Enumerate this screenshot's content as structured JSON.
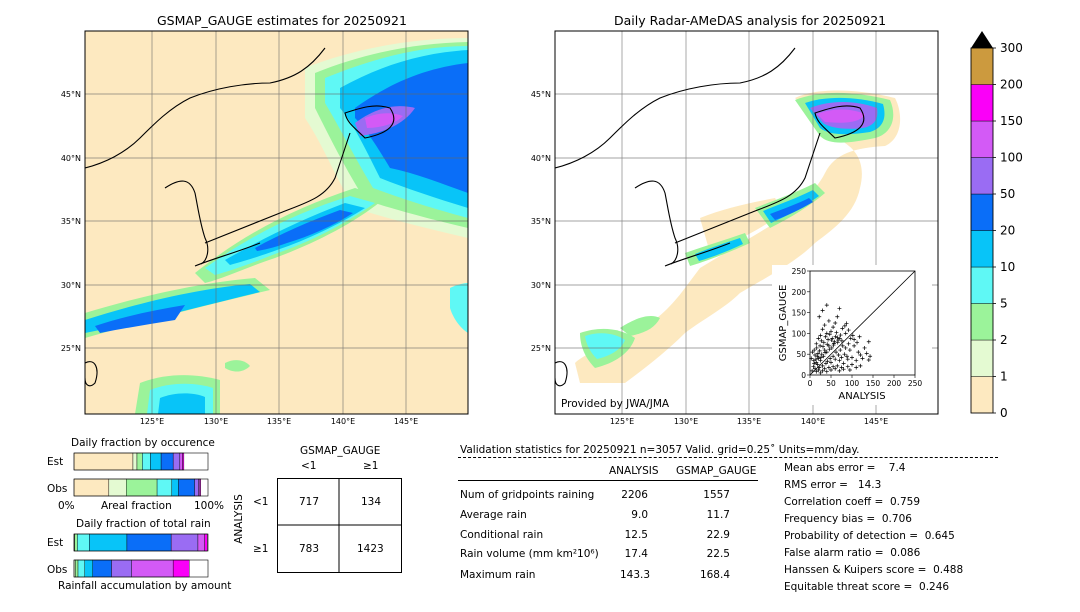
{
  "left_map": {
    "title": "GSMAP_GAUGE estimates for 20250921",
    "lon_labels": [
      "125°E",
      "130°E",
      "135°E",
      "140°E",
      "145°E"
    ],
    "lat_labels": [
      "45°N",
      "40°N",
      "35°N",
      "30°N",
      "25°N"
    ]
  },
  "right_map": {
    "title": "Daily Radar-AMeDAS analysis for 20250921",
    "lon_labels": [
      "125°E",
      "130°E",
      "135°E",
      "140°E",
      "145°E"
    ],
    "lat_labels": [
      "45°N",
      "40°N",
      "35°N",
      "30°N",
      "25°N"
    ],
    "credit": "Provided by JWA/JMA"
  },
  "colorbar": {
    "labels": [
      "0",
      "1",
      "2",
      "5",
      "10",
      "20",
      "50",
      "100",
      "150",
      "200",
      "300"
    ],
    "colors": [
      "#fde9c0",
      "#e4fad2",
      "#9bf39a",
      "#5ff8f5",
      "#08c4f8",
      "#0a6ef8",
      "#9a6cf3",
      "#d35af6",
      "#fa00f8",
      "#cc9a3e"
    ]
  },
  "occurrence": {
    "title": "Daily fraction by occurence",
    "row_labels": [
      "Est",
      "Obs"
    ],
    "axis_left": "0%",
    "axis_mid": "Areal fraction",
    "axis_right": "100%",
    "est_segments": [
      0.44,
      0.03,
      0.04,
      0.06,
      0.08,
      0.09,
      0.05,
      0.02,
      0.01,
      0.0
    ],
    "obs_segments": [
      0.26,
      0.13,
      0.23,
      0.11,
      0.05,
      0.12,
      0.03,
      0.01,
      0.005,
      0.0
    ]
  },
  "total_rain": {
    "title": "Daily fraction of total rain",
    "row_labels": [
      "Est",
      "Obs"
    ],
    "axis_label": "Rainfall accumulation by amount",
    "est_segments": [
      0.005,
      0.02,
      0.09,
      0.28,
      0.33,
      0.2,
      0.05,
      0.02
    ],
    "obs_segments": [
      0.01,
      0.02,
      0.05,
      0.06,
      0.14,
      0.15,
      0.31,
      0.12
    ]
  },
  "contingency": {
    "header": "GSMAP_GAUGE",
    "col_labels": [
      "<1",
      "≥1"
    ],
    "row_axis_label": "ANALYSIS",
    "row_labels": [
      "<1",
      "≥1"
    ],
    "cells": [
      [
        "717",
        "134"
      ],
      [
        "783",
        "1423"
      ]
    ]
  },
  "validation": {
    "header": "Validation statistics for 20250921  n=3057 Valid. grid=0.25˚ Units=mm/day.",
    "col_headers": [
      "ANALYSIS",
      "GSMAP_GAUGE"
    ],
    "rows": [
      {
        "label": "Num of gridpoints raining",
        "a": "2206",
        "g": "1557"
      },
      {
        "label": "Average rain",
        "a": "9.0",
        "g": "11.7"
      },
      {
        "label": "Conditional rain",
        "a": "12.5",
        "g": "22.9"
      },
      {
        "label": "Rain volume (mm km²10⁶)",
        "a": "17.4",
        "g": "22.5"
      },
      {
        "label": "Maximum rain",
        "a": "143.3",
        "g": "168.4"
      }
    ],
    "scores": [
      "Mean abs error =    7.4",
      "RMS error =   14.3",
      "Correlation coeff =  0.759",
      "Frequency bias =  0.706",
      "Probability of detection =  0.645",
      "False alarm ratio =  0.086",
      "Hanssen & Kuipers score =  0.488",
      "Equitable threat score =  0.246"
    ]
  },
  "chart_data": {
    "type": "scatter",
    "title": "",
    "xlabel": "ANALYSIS",
    "ylabel": "GSMAP_GAUGE",
    "xlim": [
      0,
      250
    ],
    "ylim": [
      0,
      250
    ],
    "ticks": [
      "0",
      "50",
      "100",
      "150",
      "200",
      "250"
    ],
    "diagonal": true,
    "points": [
      [
        5,
        10
      ],
      [
        8,
        20
      ],
      [
        12,
        15
      ],
      [
        15,
        30
      ],
      [
        18,
        25
      ],
      [
        20,
        40
      ],
      [
        22,
        18
      ],
      [
        25,
        35
      ],
      [
        28,
        50
      ],
      [
        30,
        22
      ],
      [
        32,
        45
      ],
      [
        35,
        60
      ],
      [
        38,
        28
      ],
      [
        40,
        55
      ],
      [
        42,
        33
      ],
      [
        45,
        70
      ],
      [
        48,
        40
      ],
      [
        50,
        30
      ],
      [
        52,
        65
      ],
      [
        55,
        45
      ],
      [
        58,
        80
      ],
      [
        60,
        38
      ],
      [
        62,
        55
      ],
      [
        65,
        90
      ],
      [
        68,
        48
      ],
      [
        70,
        35
      ],
      [
        72,
        60
      ],
      [
        75,
        42
      ],
      [
        78,
        70
      ],
      [
        80,
        28
      ],
      [
        82,
        50
      ],
      [
        85,
        100
      ],
      [
        88,
        45
      ],
      [
        90,
        38
      ],
      [
        95,
        60
      ],
      [
        100,
        42
      ],
      [
        105,
        70
      ],
      [
        110,
        35
      ],
      [
        115,
        55
      ],
      [
        120,
        48
      ],
      [
        125,
        40
      ],
      [
        130,
        65
      ],
      [
        135,
        52
      ],
      [
        140,
        36
      ],
      [
        143,
        45
      ],
      [
        10,
        60
      ],
      [
        15,
        75
      ],
      [
        20,
        88
      ],
      [
        25,
        95
      ],
      [
        30,
        110
      ],
      [
        35,
        120
      ],
      [
        40,
        100
      ],
      [
        45,
        130
      ],
      [
        50,
        105
      ],
      [
        55,
        115
      ],
      [
        60,
        125
      ],
      [
        65,
        140
      ],
      [
        70,
        160
      ],
      [
        22,
        140
      ],
      [
        30,
        155
      ],
      [
        40,
        168
      ],
      [
        15,
        8
      ],
      [
        20,
        12
      ],
      [
        25,
        5
      ],
      [
        30,
        10
      ],
      [
        35,
        15
      ],
      [
        40,
        8
      ],
      [
        45,
        18
      ],
      [
        50,
        12
      ],
      [
        55,
        20
      ],
      [
        60,
        15
      ],
      [
        65,
        22
      ],
      [
        70,
        10
      ],
      [
        75,
        18
      ],
      [
        80,
        14
      ],
      [
        90,
        20
      ],
      [
        95,
        12
      ],
      [
        100,
        25
      ],
      [
        110,
        18
      ],
      [
        120,
        22
      ],
      [
        3,
        40
      ],
      [
        6,
        55
      ],
      [
        9,
        35
      ],
      [
        12,
        48
      ],
      [
        16,
        65
      ],
      [
        19,
        52
      ],
      [
        24,
        70
      ],
      [
        27,
        82
      ],
      [
        33,
        78
      ],
      [
        37,
        92
      ],
      [
        43,
        85
      ],
      [
        47,
        98
      ],
      [
        53,
        88
      ],
      [
        57,
        76
      ],
      [
        63,
        102
      ],
      [
        67,
        84
      ],
      [
        73,
        96
      ],
      [
        77,
        112
      ],
      [
        83,
        118
      ],
      [
        87,
        124
      ],
      [
        92,
        108
      ],
      [
        97,
        88
      ],
      [
        102,
        95
      ],
      [
        85,
        65
      ],
      [
        92,
        75
      ],
      [
        105,
        85
      ],
      [
        112,
        78
      ],
      [
        118,
        92
      ],
      [
        140,
        80
      ],
      [
        10,
        28
      ],
      [
        14,
        38
      ],
      [
        18,
        45
      ],
      [
        23,
        58
      ],
      [
        26,
        42
      ],
      [
        31,
        68
      ],
      [
        36,
        54
      ],
      [
        41,
        74
      ],
      [
        46,
        62
      ],
      [
        51,
        84
      ],
      [
        56,
        72
      ],
      [
        61,
        92
      ],
      [
        66,
        78
      ],
      [
        71,
        88
      ],
      [
        76,
        82
      ]
    ]
  }
}
